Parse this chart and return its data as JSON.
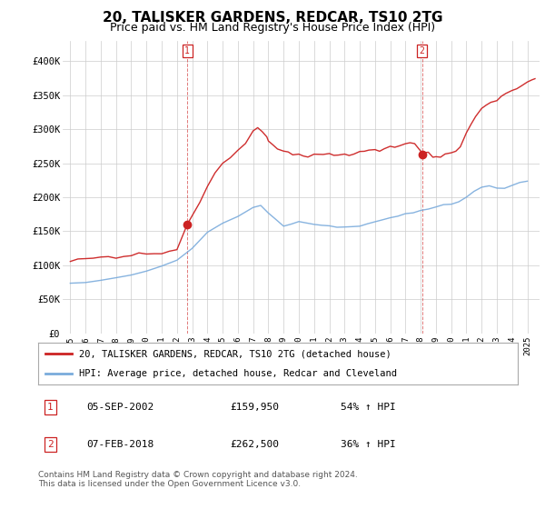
{
  "title": "20, TALISKER GARDENS, REDCAR, TS10 2TG",
  "subtitle": "Price paid vs. HM Land Registry's House Price Index (HPI)",
  "title_fontsize": 11,
  "subtitle_fontsize": 9,
  "ylabel_ticks": [
    "£0",
    "£50K",
    "£100K",
    "£150K",
    "£200K",
    "£250K",
    "£300K",
    "£350K",
    "£400K"
  ],
  "ytick_values": [
    0,
    50000,
    100000,
    150000,
    200000,
    250000,
    300000,
    350000,
    400000
  ],
  "ylim": [
    0,
    430000
  ],
  "xlim_start": 1994.5,
  "xlim_end": 2025.8,
  "hpi_color": "#7aabdc",
  "price_color": "#cc2222",
  "transaction1": {
    "date_num": 2002.68,
    "price": 159950,
    "label": "1"
  },
  "transaction2": {
    "date_num": 2018.09,
    "price": 262500,
    "label": "2"
  },
  "legend_entries": [
    "20, TALISKER GARDENS, REDCAR, TS10 2TG (detached house)",
    "HPI: Average price, detached house, Redcar and Cleveland"
  ],
  "table_rows": [
    {
      "num": "1",
      "date": "05-SEP-2002",
      "price": "£159,950",
      "change": "54% ↑ HPI"
    },
    {
      "num": "2",
      "date": "07-FEB-2018",
      "price": "£262,500",
      "change": "36% ↑ HPI"
    }
  ],
  "footnote": "Contains HM Land Registry data © Crown copyright and database right 2024.\nThis data is licensed under the Open Government Licence v3.0.",
  "background_color": "#ffffff",
  "grid_color": "#cccccc",
  "hpi_points": [
    [
      1995.0,
      72000
    ],
    [
      1996.0,
      74000
    ],
    [
      1997.0,
      78000
    ],
    [
      1998.0,
      82000
    ],
    [
      1999.0,
      86000
    ],
    [
      2000.0,
      92000
    ],
    [
      2001.0,
      100000
    ],
    [
      2002.0,
      108000
    ],
    [
      2003.0,
      125000
    ],
    [
      2004.0,
      148000
    ],
    [
      2005.0,
      162000
    ],
    [
      2006.0,
      172000
    ],
    [
      2007.0,
      185000
    ],
    [
      2007.5,
      188000
    ],
    [
      2008.0,
      178000
    ],
    [
      2008.5,
      168000
    ],
    [
      2009.0,
      158000
    ],
    [
      2009.5,
      160000
    ],
    [
      2010.0,
      165000
    ],
    [
      2010.5,
      162000
    ],
    [
      2011.0,
      160000
    ],
    [
      2011.5,
      158000
    ],
    [
      2012.0,
      157000
    ],
    [
      2012.5,
      155000
    ],
    [
      2013.0,
      156000
    ],
    [
      2013.5,
      158000
    ],
    [
      2014.0,
      160000
    ],
    [
      2014.5,
      162000
    ],
    [
      2015.0,
      165000
    ],
    [
      2015.5,
      167000
    ],
    [
      2016.0,
      170000
    ],
    [
      2016.5,
      173000
    ],
    [
      2017.0,
      176000
    ],
    [
      2017.5,
      179000
    ],
    [
      2018.0,
      182000
    ],
    [
      2018.5,
      185000
    ],
    [
      2019.0,
      186000
    ],
    [
      2019.5,
      188000
    ],
    [
      2020.0,
      188000
    ],
    [
      2020.5,
      192000
    ],
    [
      2021.0,
      200000
    ],
    [
      2021.5,
      208000
    ],
    [
      2022.0,
      215000
    ],
    [
      2022.5,
      218000
    ],
    [
      2023.0,
      216000
    ],
    [
      2023.5,
      215000
    ],
    [
      2024.0,
      217000
    ],
    [
      2024.5,
      220000
    ],
    [
      2025.0,
      222000
    ]
  ],
  "price_points": [
    [
      1995.0,
      105000
    ],
    [
      1995.5,
      108000
    ],
    [
      1996.0,
      108000
    ],
    [
      1996.5,
      110000
    ],
    [
      1997.0,
      112000
    ],
    [
      1997.5,
      113000
    ],
    [
      1998.0,
      112000
    ],
    [
      1998.5,
      114000
    ],
    [
      1999.0,
      115000
    ],
    [
      1999.5,
      117000
    ],
    [
      2000.0,
      116000
    ],
    [
      2000.5,
      118000
    ],
    [
      2001.0,
      119000
    ],
    [
      2001.5,
      121000
    ],
    [
      2002.0,
      122000
    ],
    [
      2002.68,
      159950
    ],
    [
      2003.0,
      175000
    ],
    [
      2003.5,
      195000
    ],
    [
      2004.0,
      218000
    ],
    [
      2004.5,
      238000
    ],
    [
      2005.0,
      250000
    ],
    [
      2005.5,
      258000
    ],
    [
      2006.0,
      268000
    ],
    [
      2006.5,
      278000
    ],
    [
      2007.0,
      295000
    ],
    [
      2007.3,
      300000
    ],
    [
      2007.6,
      295000
    ],
    [
      2007.9,
      288000
    ],
    [
      2008.0,
      282000
    ],
    [
      2008.3,
      278000
    ],
    [
      2008.6,
      272000
    ],
    [
      2009.0,
      268000
    ],
    [
      2009.3,
      265000
    ],
    [
      2009.6,
      262000
    ],
    [
      2010.0,
      264000
    ],
    [
      2010.3,
      262000
    ],
    [
      2010.6,
      260000
    ],
    [
      2011.0,
      263000
    ],
    [
      2011.3,
      261000
    ],
    [
      2011.6,
      260000
    ],
    [
      2012.0,
      262000
    ],
    [
      2012.3,
      260000
    ],
    [
      2012.6,
      261000
    ],
    [
      2013.0,
      263000
    ],
    [
      2013.3,
      262000
    ],
    [
      2013.6,
      264000
    ],
    [
      2014.0,
      266000
    ],
    [
      2014.3,
      265000
    ],
    [
      2014.6,
      267000
    ],
    [
      2015.0,
      270000
    ],
    [
      2015.3,
      269000
    ],
    [
      2015.6,
      272000
    ],
    [
      2016.0,
      275000
    ],
    [
      2016.3,
      274000
    ],
    [
      2016.6,
      276000
    ],
    [
      2017.0,
      280000
    ],
    [
      2017.3,
      279000
    ],
    [
      2017.6,
      278000
    ],
    [
      2018.09,
      262500
    ],
    [
      2018.5,
      265000
    ],
    [
      2018.8,
      258000
    ],
    [
      2019.0,
      260000
    ],
    [
      2019.3,
      258000
    ],
    [
      2019.6,
      262000
    ],
    [
      2020.0,
      265000
    ],
    [
      2020.3,
      268000
    ],
    [
      2020.6,
      275000
    ],
    [
      2021.0,
      295000
    ],
    [
      2021.3,
      308000
    ],
    [
      2021.6,
      318000
    ],
    [
      2022.0,
      330000
    ],
    [
      2022.3,
      335000
    ],
    [
      2022.6,
      340000
    ],
    [
      2023.0,
      342000
    ],
    [
      2023.3,
      348000
    ],
    [
      2023.6,
      352000
    ],
    [
      2024.0,
      356000
    ],
    [
      2024.3,
      358000
    ],
    [
      2024.6,
      362000
    ],
    [
      2025.0,
      368000
    ],
    [
      2025.3,
      372000
    ],
    [
      2025.5,
      375000
    ]
  ]
}
